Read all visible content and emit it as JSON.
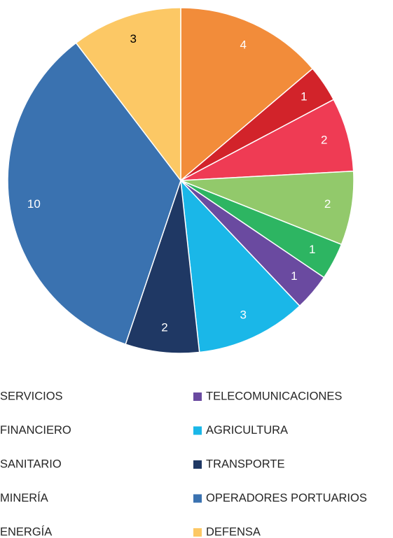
{
  "chart_data": {
    "type": "pie",
    "categories": [
      "SERVICIOS",
      "FINANCIERO",
      "SANITARIO",
      "MINERÍA",
      "ENERGÍA",
      "TELECOMUNICACIONES",
      "AGRICULTURA",
      "TRANSPORTE",
      "OPERADORES PORTUARIOS",
      "DEFENSA"
    ],
    "values": [
      4,
      1,
      2,
      2,
      1,
      1,
      3,
      2,
      10,
      3
    ],
    "colors": [
      "#f28c3a",
      "#d2232a",
      "#ef3b54",
      "#92c96b",
      "#2db562",
      "#6a4aa0",
      "#1ab7e8",
      "#1f3864",
      "#3a72b0",
      "#fcc865"
    ]
  }
}
